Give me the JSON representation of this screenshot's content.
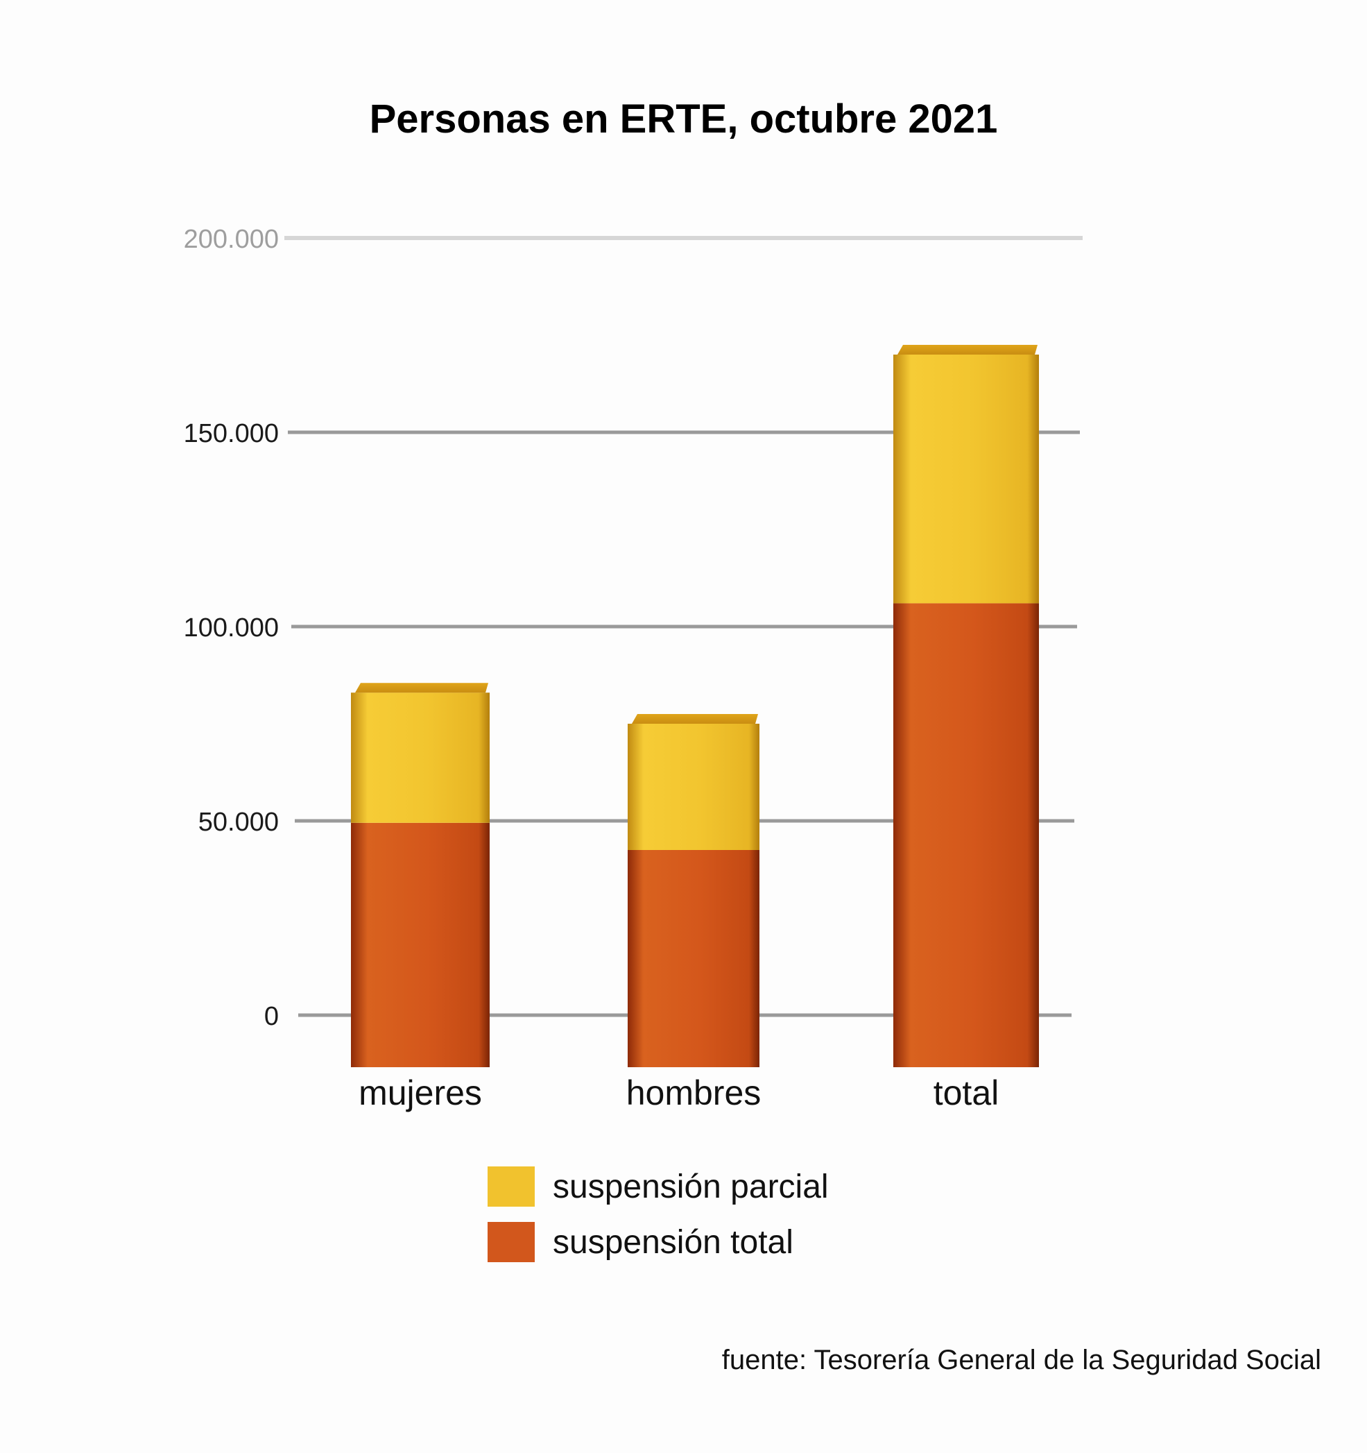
{
  "chart_data": {
    "type": "bar",
    "stacked": true,
    "title": "Personas en ERTE, octubre 2021",
    "categories": [
      "mujeres",
      "hombres",
      "total"
    ],
    "series": [
      {
        "name": "suspensión total",
        "values": [
          49500,
          42500,
          106000
        ],
        "color": "#D2571C"
      },
      {
        "name": "suspensión parcial",
        "values": [
          33500,
          32500,
          64000
        ],
        "color": "#F1C22E"
      }
    ],
    "ylim": [
      0,
      200000
    ],
    "yticks": [
      0,
      50000,
      100000,
      150000,
      200000
    ],
    "ytick_labels": [
      "0",
      "50.000",
      "100.000",
      "150.000",
      "200.000"
    ],
    "grid": true,
    "legend_position": "bottom",
    "xlabel": "",
    "ylabel": ""
  },
  "legend": {
    "parcial_label": "suspensión parcial",
    "total_label": "suspensión total"
  },
  "source": "fuente: Tesorería General de la Seguridad Social"
}
